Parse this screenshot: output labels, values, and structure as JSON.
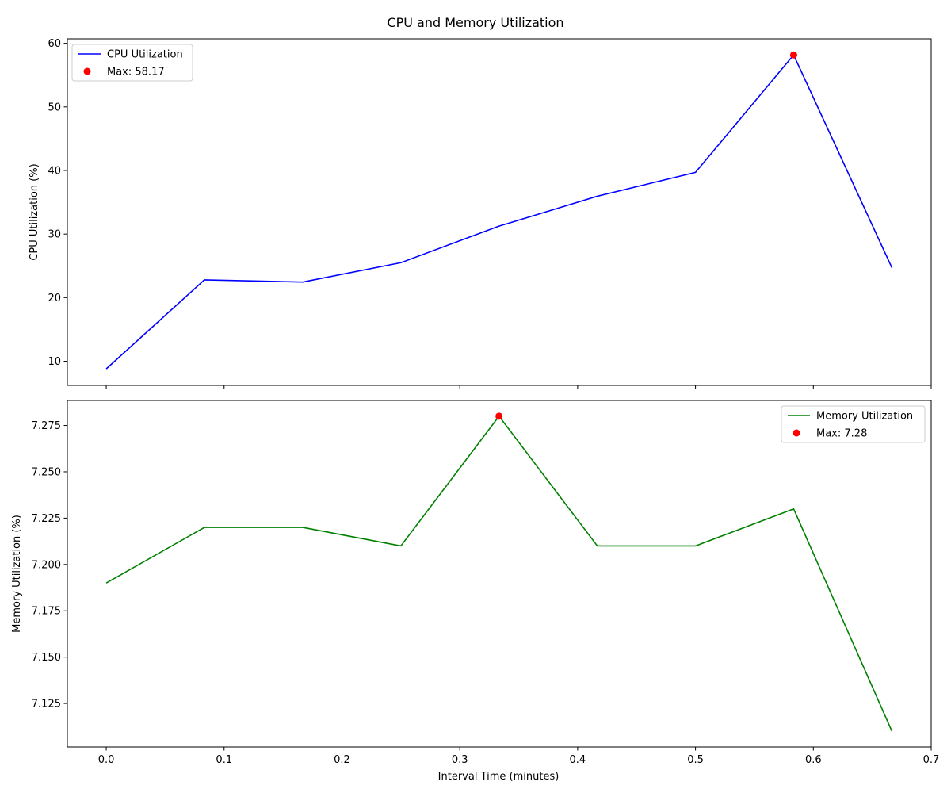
{
  "title": "CPU and Memory Utilization",
  "xlabel": "Interval Time (minutes)",
  "chart_data": [
    {
      "type": "line",
      "ylabel": "CPU Utilization (%)",
      "x": [
        0.0,
        0.0833,
        0.1667,
        0.25,
        0.3333,
        0.4167,
        0.5,
        0.5833,
        0.6667
      ],
      "xlim": [
        -0.033,
        0.7
      ],
      "xticks": [
        "0.0",
        "0.1",
        "0.2",
        "0.3",
        "0.4",
        "0.5",
        "0.6",
        "0.7"
      ],
      "ylim": [
        6.2,
        60.7
      ],
      "yticks": [
        "10",
        "20",
        "30",
        "40",
        "50",
        "60"
      ],
      "series": [
        {
          "name": "CPU Utilization",
          "color": "#0000ff",
          "values": [
            8.8,
            22.8,
            22.45,
            25.5,
            31.25,
            35.95,
            39.7,
            58.17,
            24.7
          ]
        }
      ],
      "max_marker": {
        "label": "Max: 58.17",
        "x": 0.5833,
        "y": 58.17,
        "color": "#ff0000"
      },
      "legend": "upper left",
      "x_tick_labels_shown": false
    },
    {
      "type": "line",
      "ylabel": "Memory Utilization (%)",
      "x": [
        0.0,
        0.0833,
        0.1667,
        0.25,
        0.3333,
        0.4167,
        0.5,
        0.5833,
        0.6667
      ],
      "xlim": [
        -0.033,
        0.7
      ],
      "xticks": [
        "0.0",
        "0.1",
        "0.2",
        "0.3",
        "0.4",
        "0.5",
        "0.6",
        "0.7"
      ],
      "ylim": [
        7.1015,
        7.2885
      ],
      "yticks": [
        "7.125",
        "7.150",
        "7.175",
        "7.200",
        "7.225",
        "7.250",
        "7.275"
      ],
      "series": [
        {
          "name": "Memory Utilization",
          "color": "#008000",
          "values": [
            7.19,
            7.22,
            7.22,
            7.21,
            7.28,
            7.21,
            7.21,
            7.23,
            7.11
          ]
        }
      ],
      "max_marker": {
        "label": "Max: 7.28",
        "x": 0.3333,
        "y": 7.28,
        "color": "#ff0000"
      },
      "legend": "upper right",
      "x_tick_labels_shown": true
    }
  ]
}
